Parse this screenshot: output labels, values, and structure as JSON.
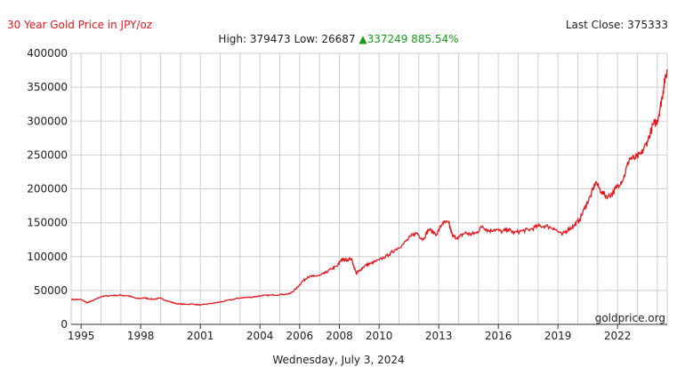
{
  "header": {
    "title": "30 Year Gold Price in JPY/oz",
    "last_close": "Last Close: 375333",
    "stats_prefix": "High: 379473 Low: 26687",
    "change_arrow": "▲",
    "change_value": "337249 885.54%"
  },
  "footer": {
    "date": "Wednesday, July 3, 2024",
    "watermark": "goldprice.org"
  },
  "colors": {
    "line": "#e8161b",
    "grid": "#cfcfcf",
    "up": "#1a9a1a"
  },
  "chart_data": {
    "type": "line",
    "title": "30 Year Gold Price in JPY/oz",
    "xlabel": "",
    "ylabel": "",
    "xlim": [
      1994.5,
      2024.5
    ],
    "ylim": [
      0,
      400000
    ],
    "grid": true,
    "x_ticks": [
      1995,
      1998,
      2001,
      2004,
      2006,
      2008,
      2010,
      2013,
      2016,
      2019,
      2022
    ],
    "y_ticks": [
      0,
      50000,
      100000,
      150000,
      200000,
      250000,
      300000,
      350000,
      400000
    ],
    "series": [
      {
        "x": [
          1994.5,
          1995.0,
          1995.3,
          1995.6,
          1996.0,
          1996.5,
          1997.0,
          1997.4,
          1997.8,
          1998.2,
          1998.6,
          1999.0,
          1999.4,
          1999.8,
          2000.2,
          2000.6,
          2001.0,
          2001.5,
          2002.0,
          2002.5,
          2003.0,
          2003.5,
          2004.0,
          2004.5,
          2005.0,
          2005.5,
          2005.8,
          2006.1,
          2006.4,
          2006.7,
          2007.0,
          2007.3,
          2007.6,
          2007.9,
          2008.1,
          2008.3,
          2008.6,
          2008.85,
          2009.0,
          2009.3,
          2009.6,
          2010.0,
          2010.5,
          2010.8,
          2011.2,
          2011.6,
          2011.9,
          2012.2,
          2012.5,
          2012.9,
          2013.2,
          2013.5,
          2013.7,
          2014.0,
          2014.3,
          2014.6,
          2014.9,
          2015.2,
          2015.5,
          2015.8,
          2016.2,
          2016.5,
          2016.8,
          2017.2,
          2017.6,
          2018.0,
          2018.4,
          2018.8,
          2019.2,
          2019.5,
          2019.8,
          2020.1,
          2020.4,
          2020.65,
          2020.9,
          2021.2,
          2021.5,
          2021.8,
          2022.0,
          2022.3,
          2022.6,
          2022.9,
          2023.2,
          2023.5,
          2023.8,
          2024.0,
          2024.15,
          2024.3,
          2024.4,
          2024.5
        ],
        "values": [
          37000,
          36500,
          32000,
          35000,
          41000,
          42500,
          43000,
          42000,
          38000,
          39000,
          37000,
          38500,
          34000,
          30500,
          29500,
          30000,
          28500,
          30500,
          33000,
          36000,
          39000,
          40000,
          42000,
          43000,
          44000,
          45000,
          52000,
          62000,
          70000,
          71000,
          72000,
          76000,
          82000,
          86000,
          96000,
          95000,
          97000,
          75000,
          79000,
          87000,
          90000,
          95000,
          103000,
          110000,
          118000,
          130000,
          135000,
          125000,
          140000,
          133000,
          150000,
          150000,
          130000,
          128000,
          135000,
          133000,
          135000,
          145000,
          138000,
          140000,
          137000,
          140000,
          135000,
          138000,
          140000,
          145000,
          145000,
          142000,
          132000,
          140000,
          145000,
          155000,
          175000,
          190000,
          210000,
          195000,
          188000,
          195000,
          205000,
          215000,
          245000,
          245000,
          252000,
          270000,
          295000,
          300000,
          320000,
          345000,
          365000,
          375333
        ]
      }
    ]
  }
}
